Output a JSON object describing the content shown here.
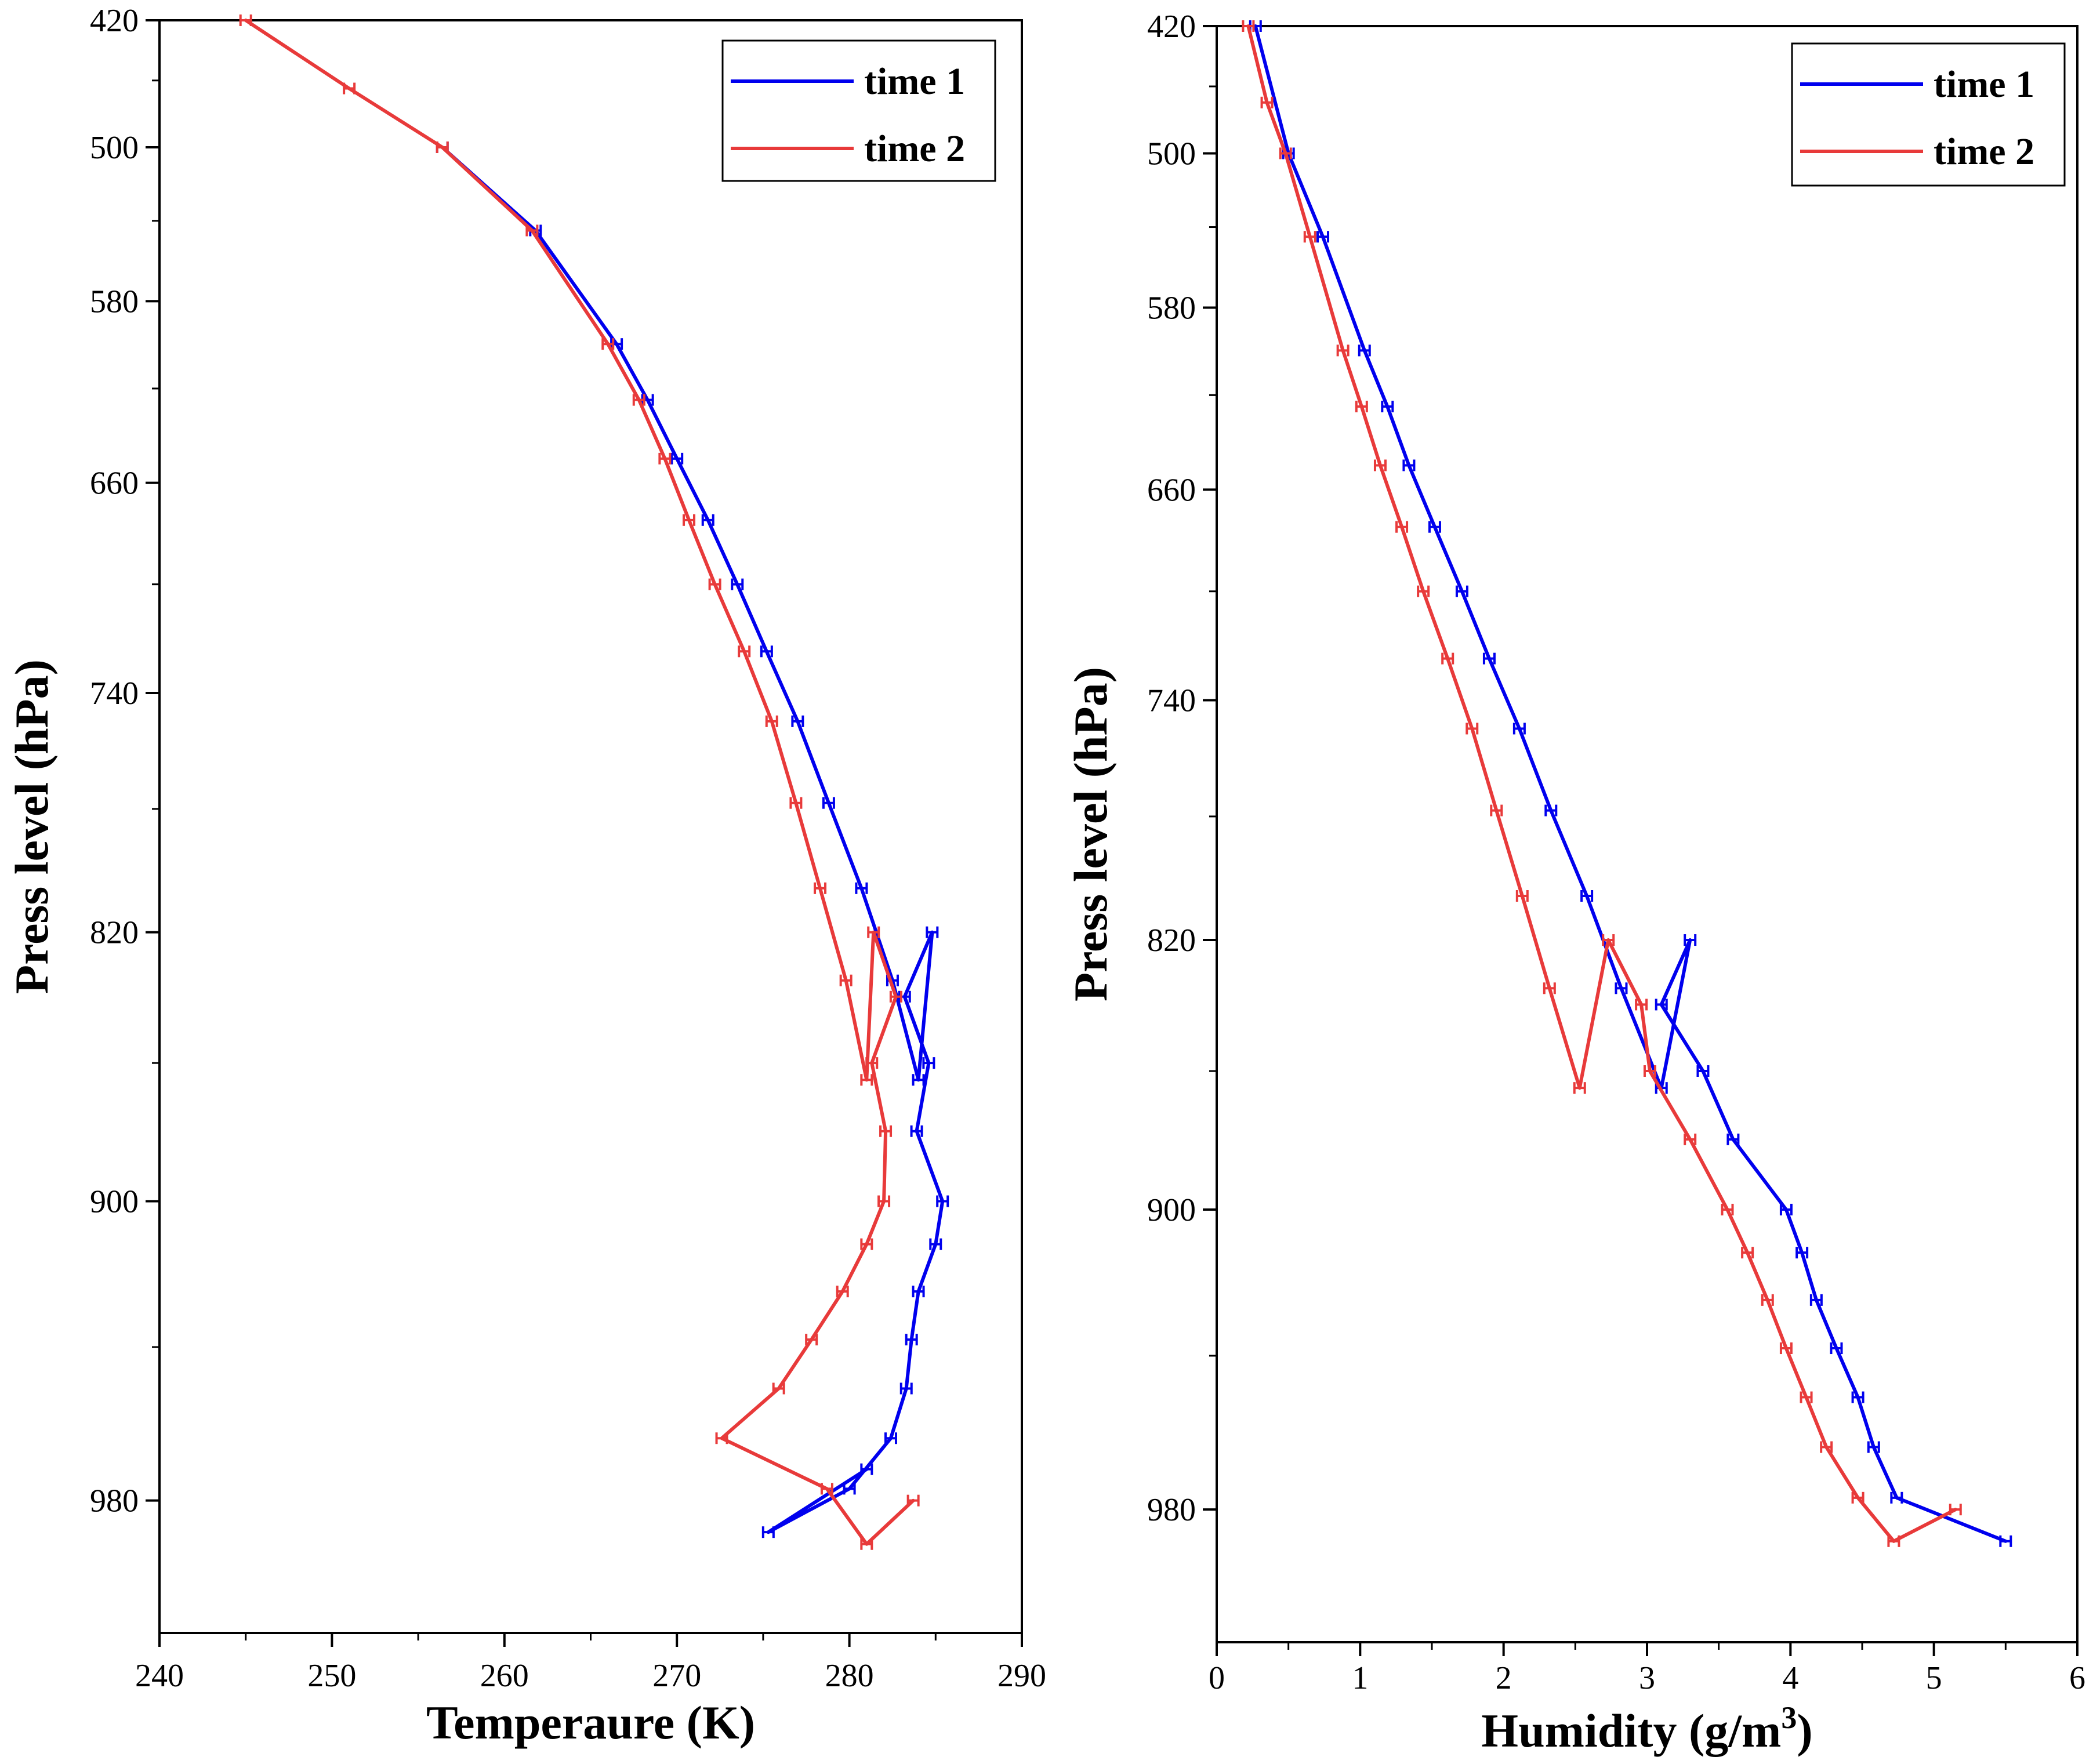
{
  "chart_data": [
    {
      "type": "line",
      "panel": "left",
      "xlabel": "Temperaure (K)",
      "ylabel": "Press level (hPa)",
      "xlim": [
        240,
        290
      ],
      "xticks": [
        240,
        250,
        260,
        270,
        280,
        290
      ],
      "ylim": [
        420,
        1013
      ],
      "yticks": [
        420,
        500,
        580,
        660,
        740,
        820,
        900,
        980
      ],
      "grid": false,
      "legend": "top-right",
      "series": [
        {
          "name": "time 1",
          "color": "#0000ee",
          "points": [
            [
              256.4,
              500
            ],
            [
              261.8,
              545
            ],
            [
              266.5,
              600
            ],
            [
              268.3,
              625
            ],
            [
              270.0,
              650
            ],
            [
              271.8,
              675
            ],
            [
              273.5,
              700
            ],
            [
              275.2,
              725
            ],
            [
              277.0,
              750
            ],
            [
              278.8,
              778
            ],
            [
              280.7,
              806
            ],
            [
              282.5,
              835
            ],
            [
              284.0,
              865
            ],
            [
              284.8,
              820
            ],
            [
              283.2,
              840
            ],
            [
              284.6,
              860
            ],
            [
              283.9,
              880
            ],
            [
              285.4,
              900
            ],
            [
              285.0,
              912
            ],
            [
              284.0,
              925
            ],
            [
              283.6,
              938
            ],
            [
              283.3,
              951
            ],
            [
              282.4,
              964
            ],
            [
              280.0,
              977
            ],
            [
              275.3,
              988
            ],
            [
              281.0,
              972
            ]
          ]
        },
        {
          "name": "time 2",
          "color": "#e83a3a",
          "points": [
            [
              245.0,
              420
            ],
            [
              251.0,
              465
            ],
            [
              256.4,
              500
            ],
            [
              261.6,
              545
            ],
            [
              266.0,
              600
            ],
            [
              267.8,
              625
            ],
            [
              269.3,
              650
            ],
            [
              270.7,
              675
            ],
            [
              272.2,
              700
            ],
            [
              273.9,
              725
            ],
            [
              275.5,
              750
            ],
            [
              276.9,
              778
            ],
            [
              278.3,
              806
            ],
            [
              279.8,
              835
            ],
            [
              281.0,
              865
            ],
            [
              281.4,
              820
            ],
            [
              282.7,
              840
            ],
            [
              281.3,
              860
            ],
            [
              282.1,
              880
            ],
            [
              282.0,
              900
            ],
            [
              281.0,
              912
            ],
            [
              279.6,
              925
            ],
            [
              277.8,
              938
            ],
            [
              275.9,
              951
            ],
            [
              272.6,
              964
            ],
            [
              278.7,
              977
            ],
            [
              281.0,
              991
            ],
            [
              283.7,
              980
            ]
          ]
        }
      ]
    },
    {
      "type": "line",
      "panel": "right",
      "xlabel": "Humidity (g/m",
      "xlabel_sup": "3",
      "xlabel_tail": ")",
      "ylabel": "Press level (hPa)",
      "xlim": [
        0,
        6
      ],
      "xticks": [
        0,
        1,
        2,
        3,
        4,
        5,
        6
      ],
      "ylim": [
        420,
        1013
      ],
      "yticks": [
        420,
        500,
        580,
        660,
        740,
        820,
        900,
        980
      ],
      "grid": false,
      "legend": "top-right",
      "series": [
        {
          "name": "time 1",
          "color": "#0000ee",
          "points": [
            [
              0.27,
              420
            ],
            [
              0.5,
              500
            ],
            [
              0.74,
              545
            ],
            [
              1.03,
              600
            ],
            [
              1.19,
              625
            ],
            [
              1.34,
              650
            ],
            [
              1.52,
              675
            ],
            [
              1.71,
              700
            ],
            [
              1.9,
              725
            ],
            [
              2.11,
              750
            ],
            [
              2.33,
              778
            ],
            [
              2.58,
              806
            ],
            [
              2.82,
              835
            ],
            [
              3.1,
              865
            ],
            [
              3.3,
              820
            ],
            [
              3.1,
              840
            ],
            [
              3.39,
              860
            ],
            [
              3.6,
              880
            ],
            [
              3.97,
              900
            ],
            [
              4.08,
              912
            ],
            [
              4.18,
              925
            ],
            [
              4.32,
              938
            ],
            [
              4.47,
              951
            ],
            [
              4.58,
              964
            ],
            [
              4.74,
              977
            ],
            [
              5.5,
              988
            ]
          ]
        },
        {
          "name": "time 2",
          "color": "#e83a3a",
          "points": [
            [
              0.22,
              420
            ],
            [
              0.35,
              470
            ],
            [
              0.48,
              500
            ],
            [
              0.65,
              545
            ],
            [
              0.88,
              600
            ],
            [
              1.01,
              625
            ],
            [
              1.14,
              650
            ],
            [
              1.29,
              675
            ],
            [
              1.44,
              700
            ],
            [
              1.61,
              725
            ],
            [
              1.78,
              750
            ],
            [
              1.95,
              778
            ],
            [
              2.13,
              806
            ],
            [
              2.32,
              835
            ],
            [
              2.53,
              865
            ],
            [
              2.73,
              820
            ],
            [
              2.96,
              840
            ],
            [
              3.02,
              860
            ],
            [
              3.3,
              880
            ],
            [
              3.56,
              900
            ],
            [
              3.7,
              912
            ],
            [
              3.84,
              925
            ],
            [
              3.97,
              938
            ],
            [
              4.11,
              951
            ],
            [
              4.25,
              964
            ],
            [
              4.47,
              977
            ],
            [
              4.72,
              988
            ],
            [
              5.15,
              980
            ]
          ]
        }
      ]
    }
  ]
}
